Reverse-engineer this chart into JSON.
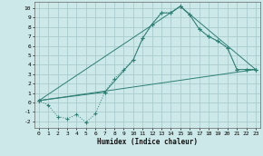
{
  "xlabel": "Humidex (Indice chaleur)",
  "bg_color": "#cce8e8",
  "grid_color": "#aacccc",
  "line_color": "#2e7f74",
  "xlim": [
    -0.5,
    23.5
  ],
  "ylim": [
    -2.7,
    10.7
  ],
  "xticks": [
    0,
    1,
    2,
    3,
    4,
    5,
    6,
    7,
    8,
    9,
    10,
    11,
    12,
    13,
    14,
    15,
    16,
    17,
    18,
    19,
    20,
    21,
    22,
    23
  ],
  "yticks": [
    -2,
    -1,
    0,
    1,
    2,
    3,
    4,
    5,
    6,
    7,
    8,
    9,
    10
  ],
  "curve1_x": [
    0,
    1,
    2,
    3,
    4,
    5,
    6,
    7,
    8,
    9,
    10,
    11,
    12,
    13,
    14,
    15,
    16,
    17,
    18,
    19,
    20,
    21,
    22,
    23
  ],
  "curve1_y": [
    0.2,
    -0.3,
    -1.5,
    -1.7,
    -1.3,
    -2.1,
    -1.2,
    1.1,
    2.5,
    3.5,
    4.5,
    6.8,
    8.3,
    9.5,
    9.5,
    10.2,
    9.3,
    7.8,
    7.0,
    6.5,
    5.8,
    3.5,
    3.5,
    3.5
  ],
  "curve2_x": [
    0,
    7,
    10,
    11,
    12,
    13,
    14,
    15,
    16,
    17,
    18,
    19,
    20,
    21,
    22,
    23
  ],
  "curve2_y": [
    0.2,
    1.1,
    4.5,
    6.8,
    8.3,
    9.5,
    9.5,
    10.2,
    9.3,
    7.8,
    7.0,
    6.5,
    5.8,
    3.5,
    3.5,
    3.5
  ],
  "curve3_x": [
    0,
    23
  ],
  "curve3_y": [
    0.2,
    3.5
  ],
  "curve4_x": [
    0,
    15,
    23
  ],
  "curve4_y": [
    0.2,
    10.2,
    3.5
  ]
}
